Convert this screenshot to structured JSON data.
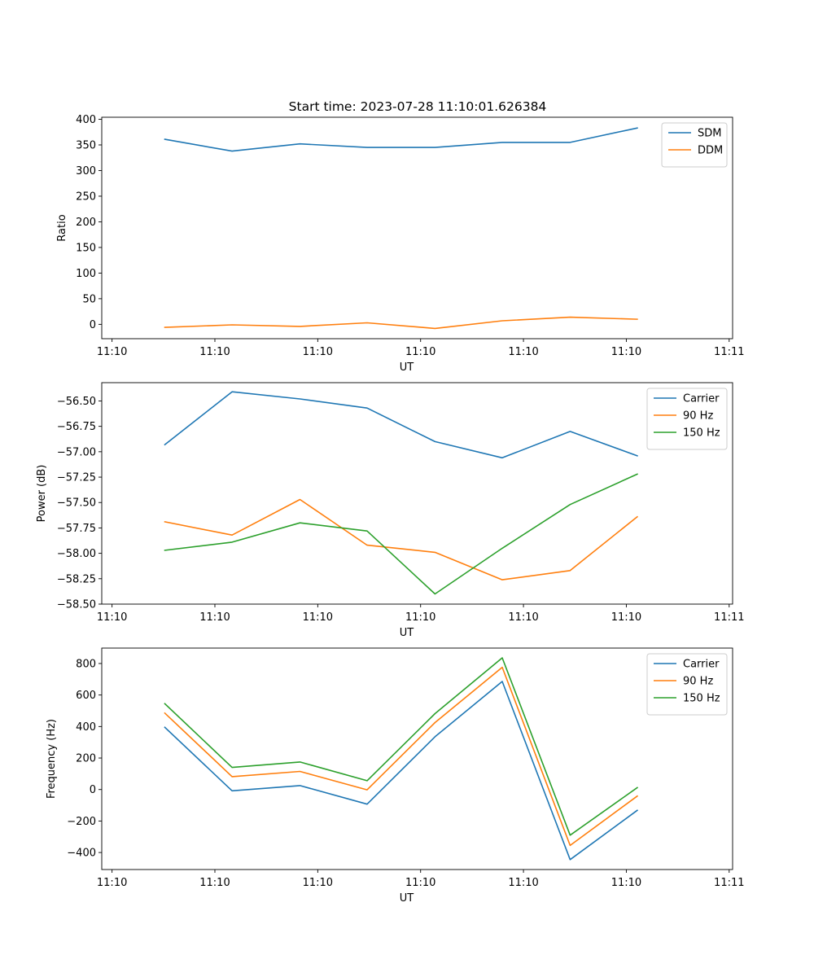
{
  "figure_title": "Start time: 2023-07-28 11:10:01.626384",
  "colors": {
    "blue": "#1f77b4",
    "orange": "#ff7f0e",
    "green": "#2ca02c"
  },
  "chart_data": [
    {
      "type": "line",
      "xlabel": "UT",
      "ylabel": "Ratio",
      "xlim": [
        0,
        9.2
      ],
      "ylim": [
        -28,
        404
      ],
      "x_ticks": [
        {
          "value": 0.15,
          "label": "11:10"
        },
        {
          "value": 1.65,
          "label": "11:10"
        },
        {
          "value": 3.15,
          "label": "11:10"
        },
        {
          "value": 4.65,
          "label": "11:10"
        },
        {
          "value": 6.15,
          "label": "11:10"
        },
        {
          "value": 7.65,
          "label": "11:10"
        },
        {
          "value": 9.15,
          "label": "11:11"
        }
      ],
      "y_ticks": [
        {
          "value": 400,
          "label": "400"
        },
        {
          "value": 350,
          "label": "350"
        },
        {
          "value": 300,
          "label": "300"
        },
        {
          "value": 250,
          "label": "250"
        },
        {
          "value": 200,
          "label": "200"
        },
        {
          "value": 150,
          "label": "150"
        },
        {
          "value": 100,
          "label": "100"
        },
        {
          "value": 50,
          "label": "50"
        },
        {
          "value": 0,
          "label": "0"
        }
      ],
      "x": [
        0.92,
        1.9,
        2.89,
        3.87,
        4.86,
        5.84,
        6.83,
        7.81
      ],
      "series": [
        {
          "name": "SDM",
          "color": "#1f77b4",
          "values": [
            361,
            338,
            352,
            345,
            345,
            355,
            355,
            383
          ]
        },
        {
          "name": "DDM",
          "color": "#ff7f0e",
          "values": [
            -6,
            -1,
            -4,
            3,
            -8,
            7,
            14,
            10
          ]
        }
      ],
      "legend": "upper right"
    },
    {
      "type": "line",
      "xlabel": "UT",
      "ylabel": "Power (dB)",
      "xlim": [
        0,
        9.2
      ],
      "ylim": [
        -58.5,
        -56.32
      ],
      "x_ticks": [
        {
          "value": 0.15,
          "label": "11:10"
        },
        {
          "value": 1.65,
          "label": "11:10"
        },
        {
          "value": 3.15,
          "label": "11:10"
        },
        {
          "value": 4.65,
          "label": "11:10"
        },
        {
          "value": 6.15,
          "label": "11:10"
        },
        {
          "value": 7.65,
          "label": "11:10"
        },
        {
          "value": 9.15,
          "label": "11:11"
        }
      ],
      "y_ticks": [
        {
          "value": -56.5,
          "label": "−56.50"
        },
        {
          "value": -56.75,
          "label": "−56.75"
        },
        {
          "value": -57.0,
          "label": "−57.00"
        },
        {
          "value": -57.25,
          "label": "−57.25"
        },
        {
          "value": -57.5,
          "label": "−57.50"
        },
        {
          "value": -57.75,
          "label": "−57.75"
        },
        {
          "value": -58.0,
          "label": "−58.00"
        },
        {
          "value": -58.25,
          "label": "−58.25"
        },
        {
          "value": -58.5,
          "label": "−58.50"
        }
      ],
      "x": [
        0.92,
        1.9,
        2.89,
        3.87,
        4.86,
        5.84,
        6.83,
        7.81
      ],
      "series": [
        {
          "name": "Carrier",
          "color": "#1f77b4",
          "values": [
            -56.93,
            -56.41,
            -56.48,
            -56.57,
            -56.9,
            -57.06,
            -56.8,
            -57.04
          ]
        },
        {
          "name": "90 Hz",
          "color": "#ff7f0e",
          "values": [
            -57.69,
            -57.82,
            -57.47,
            -57.92,
            -57.99,
            -58.26,
            -58.17,
            -57.64
          ]
        },
        {
          "name": "150 Hz",
          "color": "#2ca02c",
          "values": [
            -57.97,
            -57.89,
            -57.7,
            -57.78,
            -58.4,
            -57.95,
            -57.52,
            -57.22
          ]
        }
      ],
      "legend": "upper right"
    },
    {
      "type": "line",
      "xlabel": "UT",
      "ylabel": "Frequency (Hz)",
      "xlim": [
        0,
        9.2
      ],
      "ylim": [
        -508,
        898
      ],
      "x_ticks": [
        {
          "value": 0.15,
          "label": "11:10"
        },
        {
          "value": 1.65,
          "label": "11:10"
        },
        {
          "value": 3.15,
          "label": "11:10"
        },
        {
          "value": 4.65,
          "label": "11:10"
        },
        {
          "value": 6.15,
          "label": "11:10"
        },
        {
          "value": 7.65,
          "label": "11:10"
        },
        {
          "value": 9.15,
          "label": "11:11"
        }
      ],
      "y_ticks": [
        {
          "value": 800,
          "label": "800"
        },
        {
          "value": 600,
          "label": "600"
        },
        {
          "value": 400,
          "label": "400"
        },
        {
          "value": 200,
          "label": "200"
        },
        {
          "value": 0,
          "label": "0"
        },
        {
          "value": -200,
          "label": "−200"
        },
        {
          "value": -400,
          "label": "−400"
        }
      ],
      "x": [
        0.92,
        1.9,
        2.89,
        3.87,
        4.86,
        5.84,
        6.83,
        7.81
      ],
      "series": [
        {
          "name": "Carrier",
          "color": "#1f77b4",
          "values": [
            395,
            -8,
            25,
            -93,
            335,
            686,
            -445,
            -132
          ]
        },
        {
          "name": "90 Hz",
          "color": "#ff7f0e",
          "values": [
            485,
            82,
            115,
            -2,
            425,
            776,
            -355,
            -42
          ]
        },
        {
          "name": "150 Hz",
          "color": "#2ca02c",
          "values": [
            545,
            140,
            175,
            56,
            482,
            836,
            -290,
            12
          ]
        }
      ],
      "legend": "upper right"
    }
  ]
}
